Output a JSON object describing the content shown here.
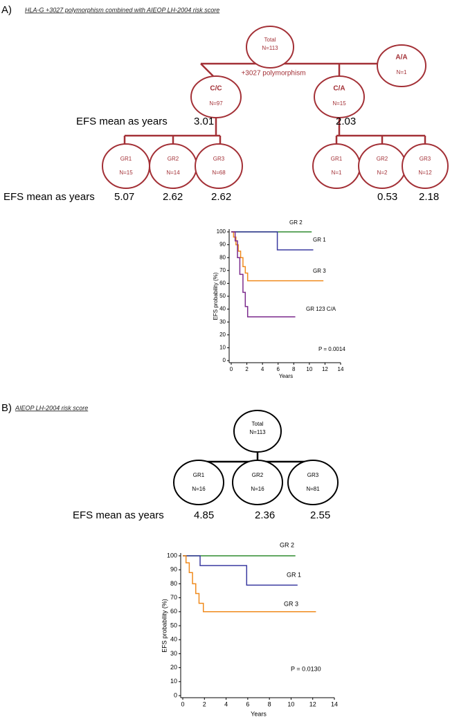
{
  "panels": [
    {
      "label": "A)",
      "title": "HLA-G +3027 polymorphism combined with AIEOP LH-2004 risk score",
      "edge_label": "+3027 polymorphism",
      "efs_label": "EFS mean as years",
      "efs_label_2": "EFS mean as years",
      "nodes": [
        {
          "title": "Total",
          "n": "N=113"
        },
        {
          "title": "A/A",
          "n": "N=1"
        },
        {
          "title": "C/C",
          "n": "N=97",
          "efs": 3.01
        },
        {
          "title": "C/A",
          "n": "N=15",
          "efs": 2.03
        },
        {
          "title": "GR1",
          "n": "N=15",
          "efs": 5.07
        },
        {
          "title": "GR2",
          "n": "N=14",
          "efs": 2.62
        },
        {
          "title": "GR3",
          "n": "N=68",
          "efs": 2.62
        },
        {
          "title": "GR1",
          "n": "N=1"
        },
        {
          "title": "GR2",
          "n": "N=2",
          "efs": 0.53
        },
        {
          "title": "GR3",
          "n": "N=12",
          "efs": 2.18
        }
      ]
    },
    {
      "label": "B)",
      "title": "AIEOP LH-2004 risk score",
      "efs_label": "EFS mean as years",
      "nodes": [
        {
          "title": "Total",
          "n": "N=113"
        },
        {
          "title": "GR1",
          "n": "N=16",
          "efs": 4.85
        },
        {
          "title": "GR2",
          "n": "N=16",
          "efs": 2.36
        },
        {
          "title": "GR3",
          "n": "N=81",
          "efs": 2.55
        }
      ]
    }
  ],
  "chart_data": [
    {
      "type": "step",
      "xlabel": "Years",
      "ylabel": "EFS probability (%)",
      "annotation": "P = 0.0014",
      "xlim": [
        0,
        14
      ],
      "ylim": [
        0,
        100
      ],
      "xticks": [
        0,
        2,
        4,
        6,
        8,
        10,
        12,
        14
      ],
      "yticks": [
        0,
        10,
        20,
        30,
        40,
        50,
        60,
        70,
        80,
        90,
        100
      ],
      "series": [
        {
          "name": "GR 2",
          "color": "#2e8b2e",
          "x": [
            0,
            10.3
          ],
          "values": [
            100,
            100
          ]
        },
        {
          "name": "GR 1",
          "color": "#3a3aa0",
          "x": [
            0,
            5.9,
            5.9,
            10.5
          ],
          "values": [
            100,
            100,
            86,
            86
          ]
        },
        {
          "name": "GR 3",
          "color": "#f08a1c",
          "x": [
            0,
            0.3,
            0.3,
            0.6,
            0.6,
            0.9,
            0.9,
            1.2,
            1.2,
            1.5,
            1.5,
            1.8,
            1.8,
            2.1,
            2.1,
            11.8
          ],
          "values": [
            100,
            100,
            96,
            96,
            90,
            90,
            85,
            85,
            80,
            80,
            73,
            73,
            68,
            68,
            62,
            62
          ]
        },
        {
          "name": "GR 123 C/A",
          "color": "#7b2a8c",
          "x": [
            0,
            0.5,
            0.5,
            0.8,
            0.8,
            1.1,
            1.1,
            1.5,
            1.5,
            1.8,
            1.8,
            2.1,
            2.1,
            8.2
          ],
          "values": [
            100,
            100,
            93,
            93,
            80,
            80,
            67,
            67,
            53,
            53,
            42,
            42,
            34,
            34
          ]
        }
      ]
    },
    {
      "type": "step",
      "xlabel": "Years",
      "ylabel": "EFS probability (%)",
      "annotation": "P = 0.0130",
      "xlim": [
        0,
        14
      ],
      "ylim": [
        0,
        100
      ],
      "xticks": [
        0,
        2,
        4,
        6,
        8,
        10,
        12,
        14
      ],
      "yticks": [
        0,
        10,
        20,
        30,
        40,
        50,
        60,
        70,
        80,
        90,
        100
      ],
      "series": [
        {
          "name": "GR 2",
          "color": "#2e8b2e",
          "x": [
            0,
            10.4
          ],
          "values": [
            100,
            100
          ]
        },
        {
          "name": "GR 1",
          "color": "#3a3aa0",
          "x": [
            0,
            1.6,
            1.6,
            5.9,
            5.9,
            10.6
          ],
          "values": [
            100,
            100,
            93,
            93,
            79,
            79
          ]
        },
        {
          "name": "GR 3",
          "color": "#f08a1c",
          "x": [
            0,
            0.3,
            0.3,
            0.6,
            0.6,
            0.9,
            0.9,
            1.2,
            1.2,
            1.5,
            1.5,
            1.9,
            1.9,
            12.3
          ],
          "values": [
            100,
            100,
            95,
            95,
            88,
            88,
            80,
            80,
            73,
            73,
            66,
            66,
            60,
            60
          ]
        }
      ]
    }
  ]
}
